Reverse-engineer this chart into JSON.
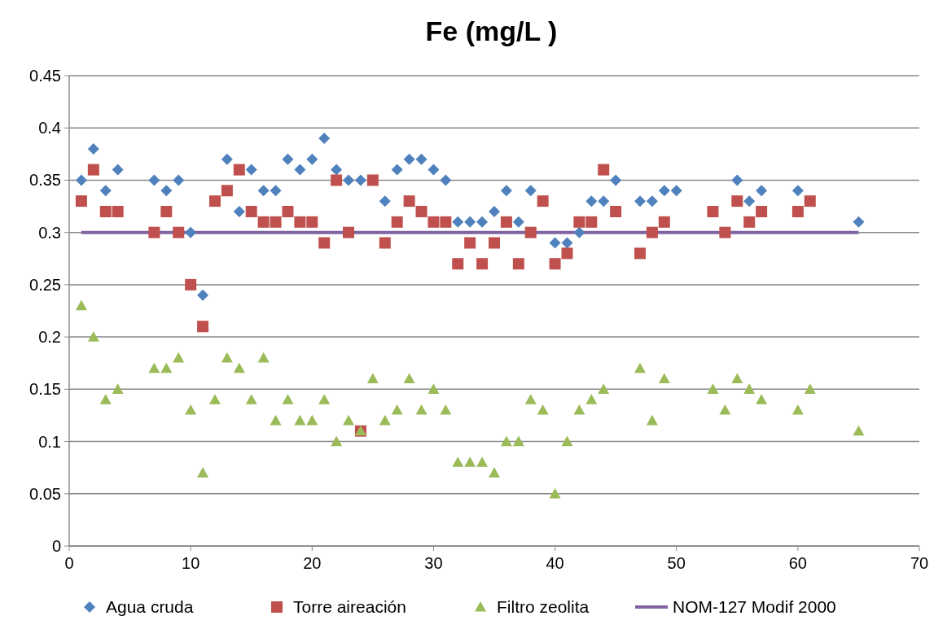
{
  "chart_data": {
    "type": "scatter",
    "title": "Fe (mg/L )",
    "xlim": [
      0,
      70
    ],
    "xticks": [
      0,
      10,
      20,
      30,
      40,
      50,
      60,
      70
    ],
    "ylim": [
      0,
      0.45
    ],
    "yticks": [
      0,
      0.05,
      0.1,
      0.15,
      0.2,
      0.25,
      0.3,
      0.35,
      0.4,
      0.45
    ],
    "grid": "y",
    "legend": "bottom",
    "series": [
      {
        "name": "Agua cruda",
        "color": "#4f81bd",
        "marker": "diamond",
        "x": [
          1,
          2,
          3,
          4,
          7,
          8,
          9,
          10,
          11,
          13,
          14,
          15,
          16,
          17,
          18,
          19,
          20,
          21,
          22,
          23,
          24,
          26,
          27,
          28,
          29,
          30,
          31,
          32,
          33,
          34,
          35,
          36,
          37,
          38,
          40,
          41,
          42,
          43,
          44,
          45,
          47,
          48,
          49,
          50,
          55,
          56,
          57,
          60,
          65
        ],
        "values": [
          0.35,
          0.38,
          0.34,
          0.36,
          0.35,
          0.34,
          0.35,
          0.3,
          0.24,
          0.37,
          0.32,
          0.36,
          0.34,
          0.34,
          0.37,
          0.36,
          0.37,
          0.39,
          0.36,
          0.35,
          0.35,
          0.33,
          0.36,
          0.37,
          0.37,
          0.36,
          0.35,
          0.31,
          0.31,
          0.31,
          0.32,
          0.34,
          0.31,
          0.34,
          0.29,
          0.29,
          0.3,
          0.33,
          0.33,
          0.35,
          0.33,
          0.33,
          0.34,
          0.34,
          0.35,
          0.33,
          0.34,
          0.34,
          0.31
        ]
      },
      {
        "name": "Torre aireación",
        "color": "#c0504d",
        "marker": "square",
        "x": [
          1,
          2,
          3,
          4,
          7,
          8,
          9,
          10,
          11,
          12,
          13,
          14,
          15,
          16,
          17,
          18,
          19,
          20,
          21,
          22,
          23,
          24,
          25,
          26,
          27,
          28,
          29,
          30,
          31,
          32,
          33,
          34,
          35,
          36,
          37,
          38,
          39,
          40,
          41,
          42,
          43,
          44,
          45,
          47,
          48,
          49,
          53,
          54,
          55,
          56,
          57,
          60,
          61
        ],
        "values": [
          0.33,
          0.36,
          0.32,
          0.32,
          0.3,
          0.32,
          0.3,
          0.25,
          0.21,
          0.33,
          0.34,
          0.36,
          0.32,
          0.31,
          0.31,
          0.32,
          0.31,
          0.31,
          0.29,
          0.35,
          0.3,
          0.11,
          0.35,
          0.29,
          0.31,
          0.33,
          0.32,
          0.31,
          0.31,
          0.27,
          0.29,
          0.27,
          0.29,
          0.31,
          0.27,
          0.3,
          0.33,
          0.27,
          0.28,
          0.31,
          0.31,
          0.36,
          0.32,
          0.28,
          0.3,
          0.31,
          0.32,
          0.3,
          0.33,
          0.31,
          0.32,
          0.32,
          0.33
        ]
      },
      {
        "name": "Filtro zeolita",
        "color": "#9bbb59",
        "marker": "triangle",
        "x": [
          1,
          2,
          3,
          4,
          7,
          8,
          9,
          10,
          11,
          12,
          13,
          14,
          15,
          16,
          17,
          18,
          19,
          20,
          21,
          22,
          23,
          24,
          25,
          26,
          27,
          28,
          29,
          30,
          31,
          32,
          33,
          34,
          35,
          36,
          37,
          38,
          39,
          40,
          41,
          42,
          43,
          44,
          47,
          48,
          49,
          53,
          54,
          55,
          56,
          57,
          60,
          61,
          65
        ],
        "values": [
          0.23,
          0.2,
          0.14,
          0.15,
          0.17,
          0.17,
          0.18,
          0.13,
          0.07,
          0.14,
          0.18,
          0.17,
          0.14,
          0.18,
          0.12,
          0.14,
          0.12,
          0.12,
          0.14,
          0.1,
          0.12,
          0.11,
          0.16,
          0.12,
          0.13,
          0.16,
          0.13,
          0.15,
          0.13,
          0.08,
          0.08,
          0.08,
          0.07,
          0.1,
          0.1,
          0.14,
          0.13,
          0.05,
          0.1,
          0.13,
          0.14,
          0.15,
          0.17,
          0.12,
          0.16,
          0.15,
          0.13,
          0.16,
          0.15,
          0.14,
          0.13,
          0.15,
          0.11
        ]
      },
      {
        "name": "NOM-127 Modif 2000",
        "type": "line",
        "color": "#8064a2",
        "marker": "none",
        "x": [
          1,
          65
        ],
        "values": [
          0.3,
          0.3
        ]
      }
    ]
  }
}
